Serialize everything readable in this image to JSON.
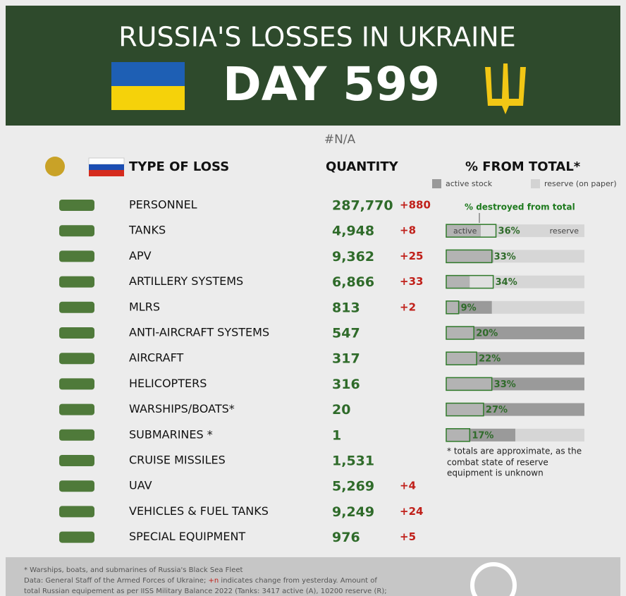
{
  "header": {
    "title": "RUSSIA'S LOSSES IN UKRAINE",
    "day": "DAY 599"
  },
  "subtitle": "#N/A",
  "columns": {
    "type": "TYPE OF LOSS",
    "quantity": "QUANTITY",
    "percent": "% FROM TOTAL*"
  },
  "legend": {
    "active": "active stock",
    "reserve": "reserve (on paper)"
  },
  "annotation": "% destroyed from total",
  "bar_labels": {
    "active": "active",
    "reserve": "reserve"
  },
  "rows": [
    {
      "name": "PERSONNEL",
      "quantity": "287,770",
      "change": "+880"
    },
    {
      "name": "TANKS",
      "quantity": "4,948",
      "change": "+8",
      "pct": 36,
      "pct_label": "36%",
      "active_pct": 25
    },
    {
      "name": "APV",
      "quantity": "9,362",
      "change": "+25",
      "pct": 33,
      "pct_label": "33%",
      "active_pct": 34
    },
    {
      "name": "ARTILLERY SYSTEMS",
      "quantity": "6,866",
      "change": "+33",
      "pct": 34,
      "pct_label": "34%",
      "active_pct": 17
    },
    {
      "name": "MLRS",
      "quantity": "813",
      "change": "+2",
      "pct": 9,
      "pct_label": "9%",
      "active_pct": 33
    },
    {
      "name": "ANTI-AIRCRAFT SYSTEMS",
      "quantity": "547",
      "pct": 20,
      "pct_label": "20%",
      "active_pct": 100
    },
    {
      "name": "AIRCRAFT",
      "quantity": "317",
      "pct": 22,
      "pct_label": "22%",
      "active_pct": 100
    },
    {
      "name": "HELICOPTERS",
      "quantity": "316",
      "pct": 33,
      "pct_label": "33%",
      "active_pct": 100
    },
    {
      "name": "WARSHIPS/BOATS*",
      "quantity": "20",
      "pct": 27,
      "pct_label": "27%",
      "active_pct": 100
    },
    {
      "name": "SUBMARINES *",
      "quantity": "1",
      "pct": 17,
      "pct_label": "17%",
      "active_pct": 50
    },
    {
      "name": "CRUISE MISSILES",
      "quantity": "1,531"
    },
    {
      "name": "UAV",
      "quantity": "5,269",
      "change": "+4"
    },
    {
      "name": "VEHICLES & FUEL TANKS",
      "quantity": "9,249",
      "change": "+24"
    },
    {
      "name": "SPECIAL EQUIPMENT",
      "quantity": "976",
      "change": "+5"
    }
  ],
  "note": [
    "* totals are approximate, as the",
    "combat state of reserve",
    "equipment is unknown"
  ],
  "footer": {
    "line1": "* Warships, boats, and submarines of Russia's Black Sea Fleet",
    "line2_a": "Data: General Staff of the Armed Forces of Ukraine; ",
    "line2_b": "+n",
    "line2_c": " indicates change from yesterday. Amount of",
    "line3": "total Russian equipement as per IISS Military Balance 2022 (Tanks: 3417 active (A), 10200 reserve (R);"
  }
}
